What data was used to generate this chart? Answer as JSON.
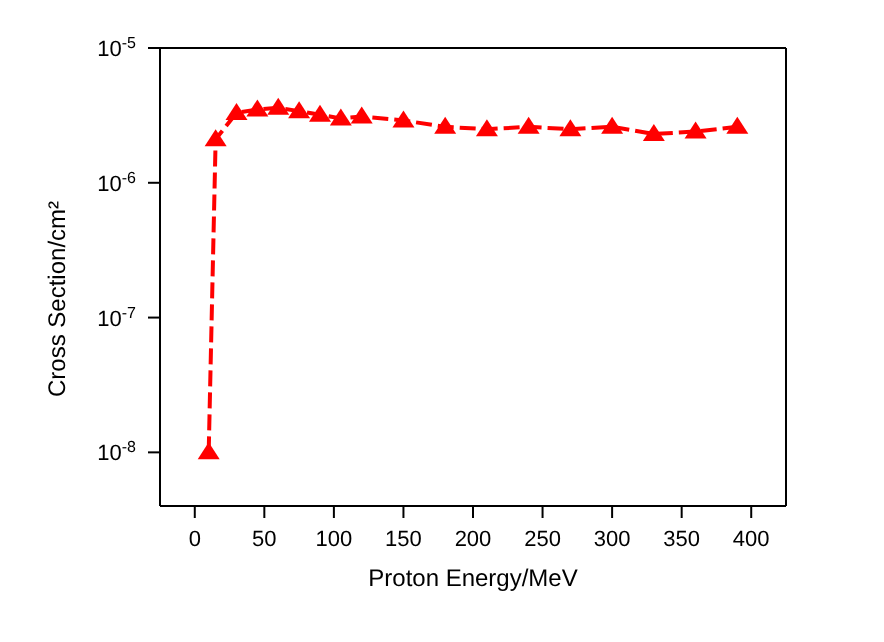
{
  "chart_data": {
    "type": "line",
    "xlabel": "Proton Energy/MeV",
    "ylabel": "Cross Section/cm²",
    "x": [
      10,
      15,
      30,
      45,
      60,
      75,
      90,
      105,
      120,
      150,
      180,
      210,
      240,
      270,
      300,
      330,
      360,
      390
    ],
    "series": [
      {
        "color": "#ff0000",
        "values": [
          1e-08,
          2.1e-06,
          3.3e-06,
          3.5e-06,
          3.6e-06,
          3.4e-06,
          3.2e-06,
          3e-06,
          3.1e-06,
          2.9e-06,
          2.6e-06,
          2.5e-06,
          2.6e-06,
          2.5e-06,
          2.6e-06,
          2.3e-06,
          2.4e-06,
          2.6e-06
        ]
      }
    ],
    "xlim": [
      -25,
      425
    ],
    "xticks": [
      0,
      50,
      100,
      150,
      200,
      250,
      300,
      350,
      400
    ],
    "ylim": [
      4e-09,
      1e-05
    ],
    "log": "y",
    "yticks": [
      {
        "value": 1e-08,
        "label": "10$^{-8}$"
      },
      {
        "value": 1e-07,
        "label": "10$^{-7}$"
      },
      {
        "value": 1e-06,
        "label": "10$^{-6}$"
      },
      {
        "value": 1e-05,
        "label": "10$^{-5}$"
      }
    ],
    "marker": "triangle",
    "line_style": "dashed",
    "grid": false,
    "legend": false
  }
}
